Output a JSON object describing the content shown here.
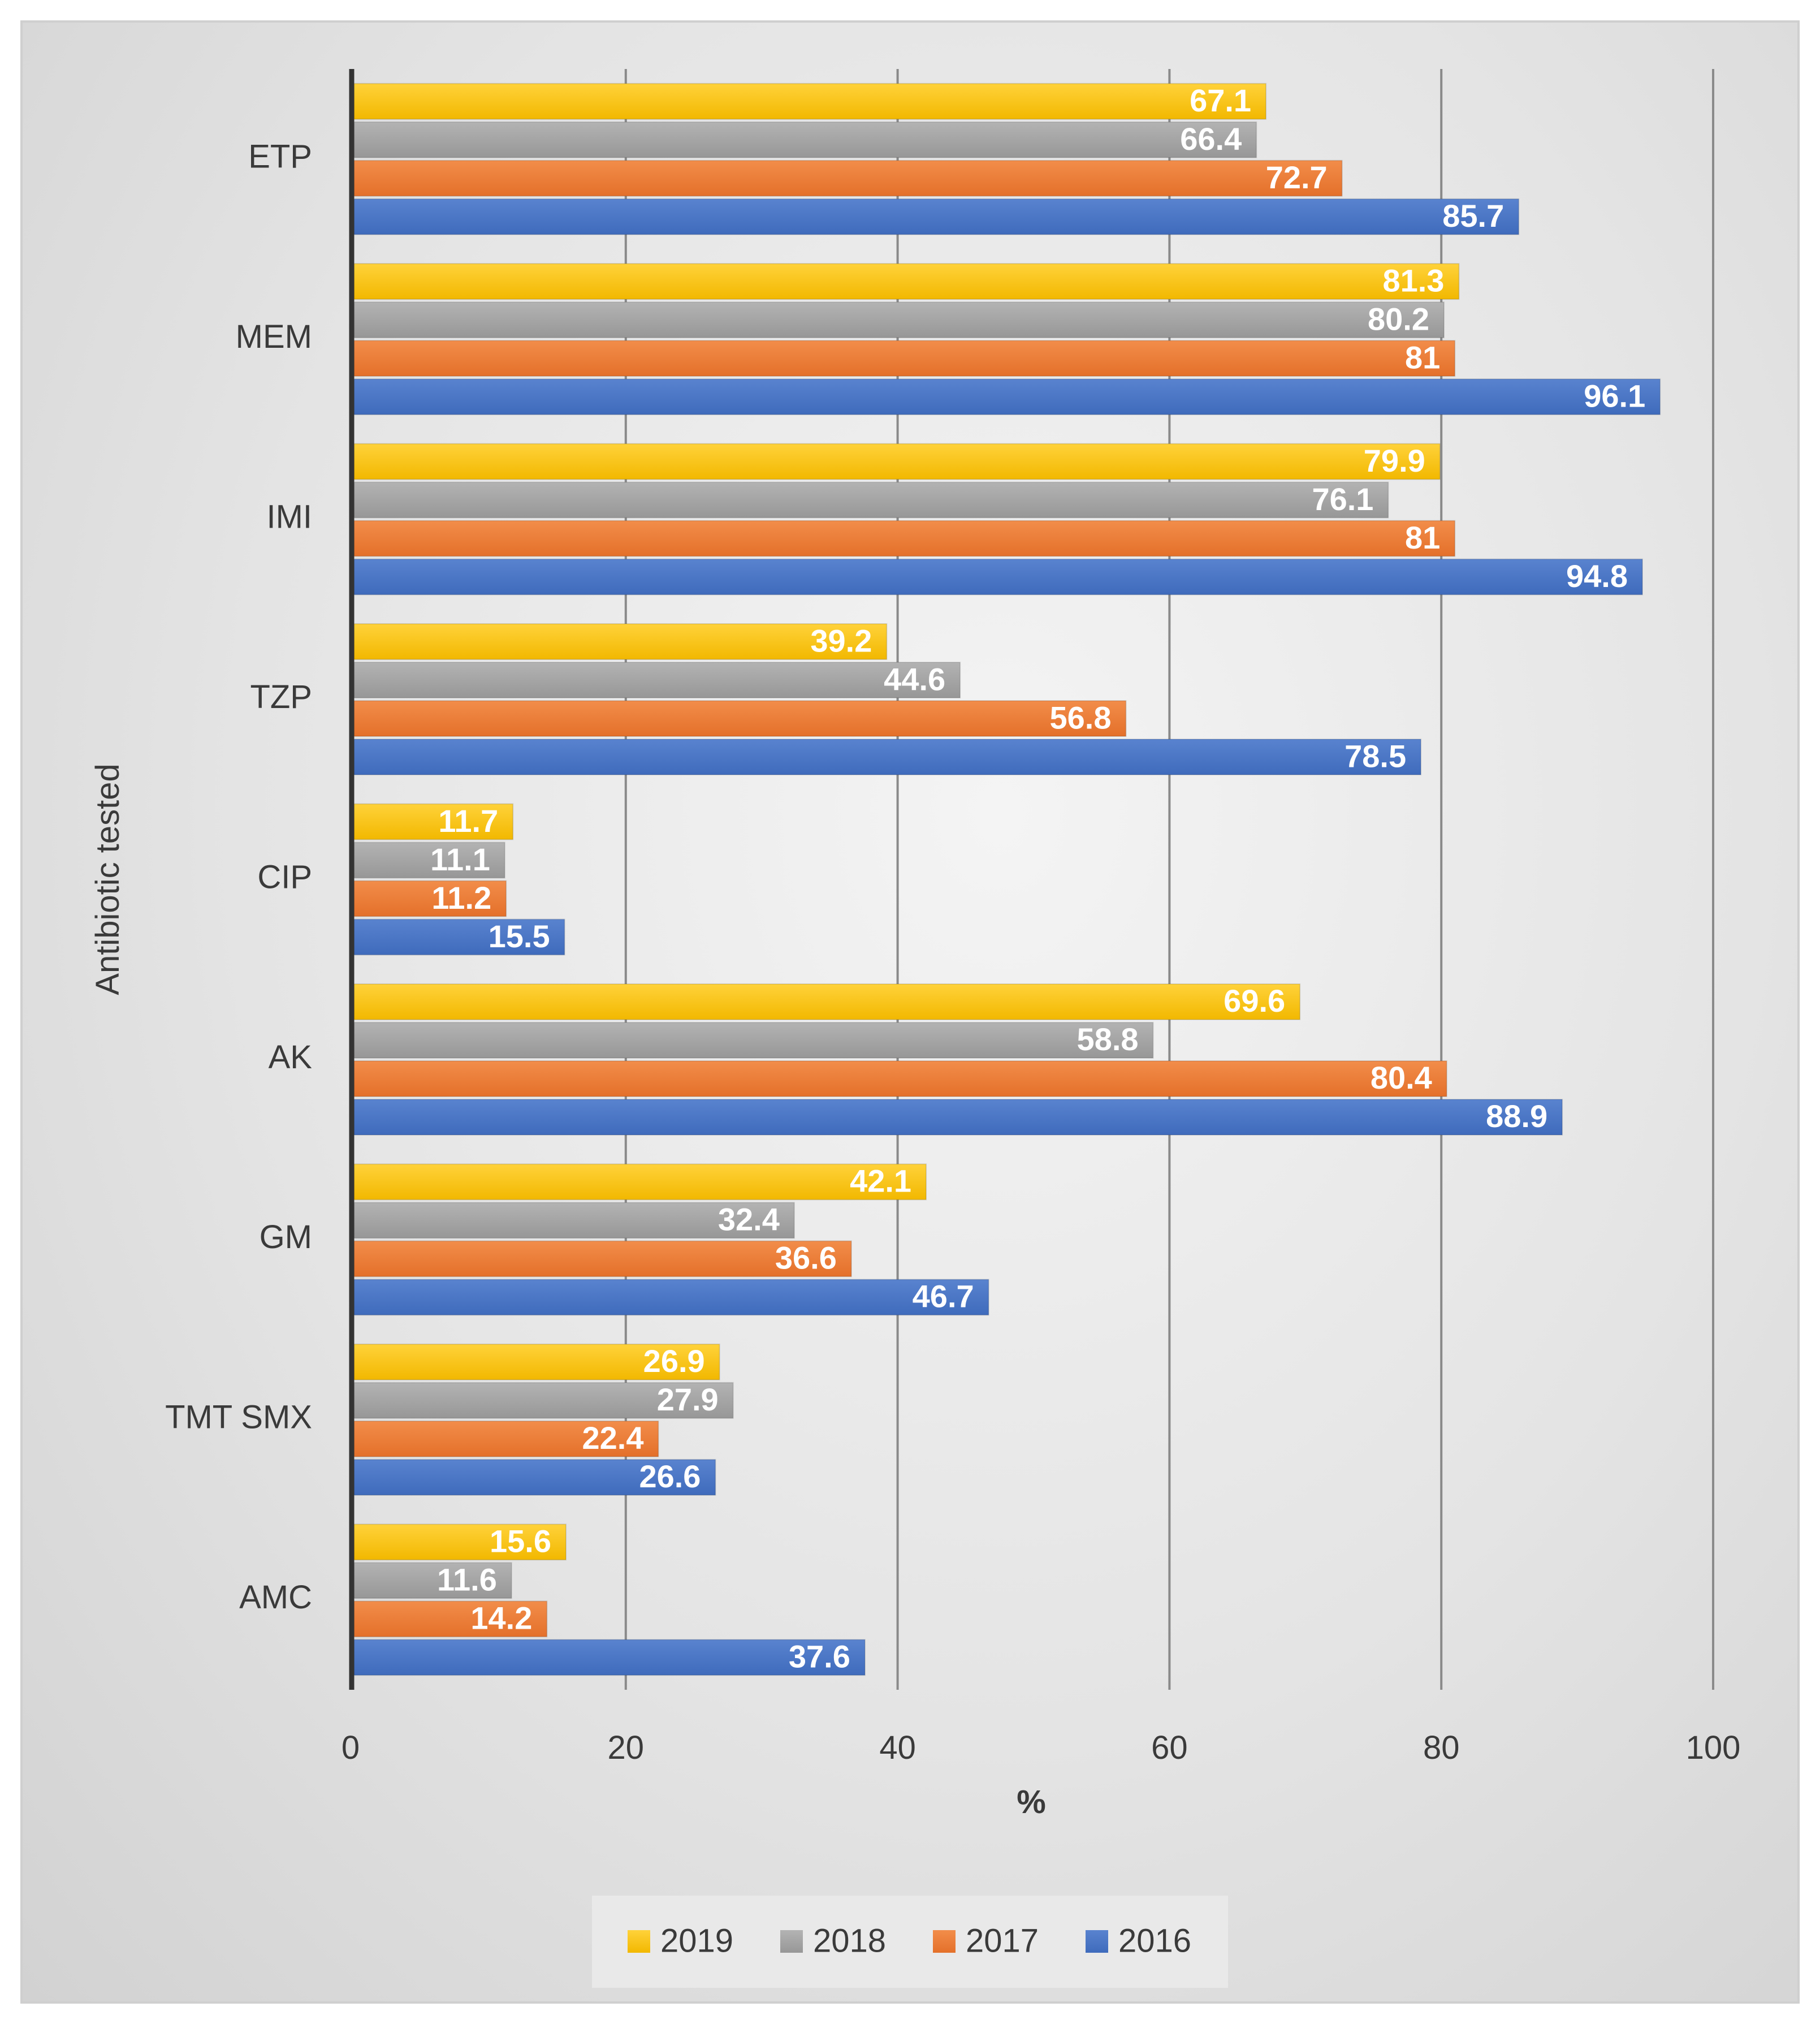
{
  "chart_data": {
    "type": "bar",
    "orientation": "horizontal",
    "title": "",
    "xlabel": "%",
    "ylabel": "Antibiotic tested",
    "xlim": [
      0,
      100
    ],
    "xticks": [
      0,
      20,
      40,
      60,
      80,
      100
    ],
    "grid": true,
    "legend_position": "bottom",
    "categories": [
      "ETP",
      "MEM",
      "IMI",
      "TZP",
      "CIP",
      "AK",
      "GM",
      "TMT SMX",
      "AMC"
    ],
    "series": [
      {
        "name": "2019",
        "color": "#FFC000",
        "values": [
          67.1,
          81.3,
          79.9,
          39.2,
          11.7,
          69.6,
          42.1,
          26.9,
          15.6
        ]
      },
      {
        "name": "2018",
        "color": "#A5A5A5",
        "values": [
          66.4,
          80.2,
          76.1,
          44.6,
          11.1,
          58.8,
          32.4,
          27.9,
          11.6
        ]
      },
      {
        "name": "2017",
        "color": "#ED7D31",
        "values": [
          72.7,
          81,
          81,
          56.8,
          11.2,
          80.4,
          36.6,
          22.4,
          14.2
        ]
      },
      {
        "name": "2016",
        "color": "#4472C4",
        "values": [
          85.7,
          96.1,
          94.8,
          78.5,
          15.5,
          88.9,
          46.7,
          26.6,
          37.6
        ]
      }
    ]
  }
}
